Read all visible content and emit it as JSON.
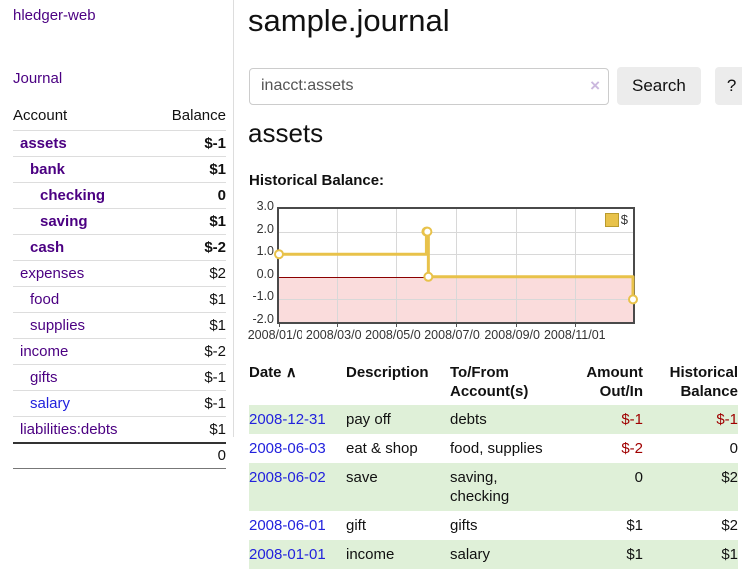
{
  "sidebar": {
    "app_title": "hledger-web",
    "journal_label": "Journal",
    "accounts_table": {
      "headers": {
        "account": "Account",
        "balance": "Balance"
      },
      "rows": [
        {
          "label": "assets",
          "balance": "$-1",
          "indent": "d1",
          "name_class": "bold",
          "balance_class": "bold neg-strong"
        },
        {
          "label": "bank",
          "balance": "$1",
          "indent": "d2",
          "name_class": "bold",
          "balance_class": "bold"
        },
        {
          "label": "checking",
          "balance": "0",
          "indent": "d3",
          "name_class": "bold",
          "balance_class": "bold"
        },
        {
          "label": "saving",
          "balance": "$1",
          "indent": "d3",
          "name_class": "bold",
          "balance_class": "bold"
        },
        {
          "label": "cash",
          "balance": "$-2",
          "indent": "d2",
          "name_class": "bold",
          "balance_class": "bold neg-strong"
        },
        {
          "label": "expenses",
          "balance": "$2",
          "indent": "d1",
          "name_class": "",
          "balance_class": ""
        },
        {
          "label": "food",
          "balance": "$1",
          "indent": "d2",
          "name_class": "",
          "balance_class": ""
        },
        {
          "label": "supplies",
          "balance": "$1",
          "indent": "d2",
          "name_class": "",
          "balance_class": ""
        },
        {
          "label": "income",
          "balance": "$-2",
          "indent": "d1",
          "name_class": "",
          "balance_class": "neg-soft"
        },
        {
          "label": "gifts",
          "balance": "$-1",
          "indent": "d2",
          "name_class": "",
          "balance_class": "neg-soft"
        },
        {
          "label": "salary",
          "balance": "$-1",
          "indent": "d2",
          "name_class": "blue",
          "balance_class": "neg-soft"
        },
        {
          "label": "liabilities:debts",
          "balance": "$1",
          "indent": "d1",
          "name_class": "",
          "balance_class": ""
        }
      ],
      "total": "0"
    }
  },
  "main": {
    "title": "sample.journal",
    "search": {
      "value": "inacct:assets",
      "clear_icon": "×",
      "button_label": "Search",
      "help_label": "?"
    },
    "section_title": "assets",
    "chart_label": "Historical Balance:"
  },
  "chart_data": {
    "type": "line",
    "title": "Historical Balance",
    "step": true,
    "series": [
      {
        "name": "$",
        "points": [
          [
            "2008-01-01",
            1
          ],
          [
            "2008-06-01",
            2
          ],
          [
            "2008-06-02",
            2
          ],
          [
            "2008-06-03",
            0
          ],
          [
            "2008-12-31",
            -1
          ]
        ]
      }
    ],
    "xrange": [
      "2008-01-01",
      "2008-12-31"
    ],
    "ylim": [
      -2,
      3
    ],
    "yticks": [
      "3.0",
      "2.0",
      "1.0",
      "0.0",
      "-1.0",
      "-2.0"
    ],
    "xticks": [
      "2008/01/01",
      "2008/03/01",
      "2008/05/01",
      "2008/07/01",
      "2008/09/01",
      "2008/11/01"
    ],
    "legend": [
      "$"
    ],
    "legend_position": "top-right",
    "grid": true,
    "colors": {
      "line": "#e8c24a",
      "marker_fill": "#ffffff",
      "negative_fill": "#fadcdc",
      "zero_line": "#8b0000",
      "gridline": "#d8d8d8"
    }
  },
  "transactions_table": {
    "headers": [
      "Date",
      "Description",
      "To/From Account(s)",
      "Amount Out/In",
      "Historical Balance"
    ],
    "sort_icon": "∧",
    "rows": [
      {
        "date": "2008-12-31",
        "desc": "pay off",
        "accounts": "debts",
        "amount": "$-1",
        "balance": "$-1",
        "amount_class": "neg",
        "balance_class": "neg",
        "row_class": "alt"
      },
      {
        "date": "2008-06-03",
        "desc": "eat & shop",
        "accounts": "food, supplies",
        "amount": "$-2",
        "balance": "0",
        "amount_class": "neg",
        "balance_class": "",
        "row_class": ""
      },
      {
        "date": "2008-06-02",
        "desc": "save",
        "accounts": "saving, checking",
        "amount": "0",
        "balance": "$2",
        "amount_class": "",
        "balance_class": "",
        "row_class": "alt"
      },
      {
        "date": "2008-06-01",
        "desc": "gift",
        "accounts": "gifts",
        "amount": "$1",
        "balance": "$2",
        "amount_class": "",
        "balance_class": "",
        "row_class": ""
      },
      {
        "date": "2008-01-01",
        "desc": "income",
        "accounts": "salary",
        "amount": "$1",
        "balance": "$1",
        "amount_class": "",
        "balance_class": "",
        "row_class": "alt"
      }
    ]
  },
  "colors": {
    "link_purple": "#4b0082",
    "link_blue": "#2222dd",
    "negative_strong": "#a00000",
    "negative_soft": "#c87f7f",
    "row_stripe_green": "#dff0d8",
    "button_bg": "#ececec",
    "clear_icon": "#cbb8de"
  }
}
